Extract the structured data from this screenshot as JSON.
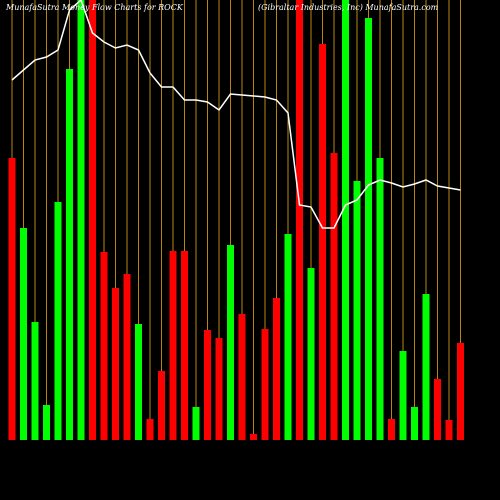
{
  "chart_data": {
    "type": "bar",
    "title": "MunafaSutra  Money Flow  Charts for ROCK",
    "subtitle": "(Gibraltar Industries, Inc) MunafaSutra.com",
    "categories": [
      null,
      null,
      null,
      null,
      null,
      null,
      null,
      null,
      null,
      null,
      null,
      null,
      null,
      null,
      null,
      null,
      null,
      null,
      null,
      null,
      null,
      null,
      null,
      null,
      null,
      null,
      null,
      null,
      null,
      null,
      null,
      null,
      null,
      null,
      null,
      null,
      null,
      null,
      null,
      null
    ],
    "values": [
      282,
      212,
      118,
      35,
      238,
      371,
      440,
      440,
      188,
      152,
      166,
      116,
      21,
      69,
      189,
      189,
      33,
      110,
      102,
      195,
      126,
      6,
      111,
      142,
      206,
      440,
      172,
      396,
      287,
      440,
      259,
      422,
      282,
      21,
      89,
      33,
      146,
      61,
      20,
      97
    ],
    "colors": [
      "#ff0000",
      "#00ff00",
      "#00ff00",
      "#00ff00",
      "#00ff00",
      "#00ff00",
      "#00ff00",
      "#ff0000",
      "#ff0000",
      "#ff0000",
      "#ff0000",
      "#00ff00",
      "#ff0000",
      "#ff0000",
      "#ff0000",
      "#ff0000",
      "#00ff00",
      "#ff0000",
      "#ff0000",
      "#00ff00",
      "#ff0000",
      "#ff0000",
      "#ff0000",
      "#ff0000",
      "#00ff00",
      "#ff0000",
      "#00ff00",
      "#ff0000",
      "#ff0000",
      "#00ff00",
      "#00ff00",
      "#00ff00",
      "#00ff00",
      "#ff0000",
      "#00ff00",
      "#00ff00",
      "#00ff00",
      "#ff0000",
      "#ff0000",
      "#ff0000"
    ],
    "line_values": [
      360,
      370,
      380,
      383,
      390,
      430,
      440,
      407,
      398,
      392,
      395,
      390,
      367,
      353,
      353,
      340,
      340,
      338,
      330,
      346,
      345,
      344,
      343,
      340,
      327,
      235,
      233,
      212,
      212,
      235,
      240,
      255,
      260,
      257,
      253,
      256,
      260,
      254,
      252,
      250
    ],
    "line_color": "#ffffff",
    "grid_color": "#b8860b",
    "ylim": [
      0,
      440
    ]
  }
}
